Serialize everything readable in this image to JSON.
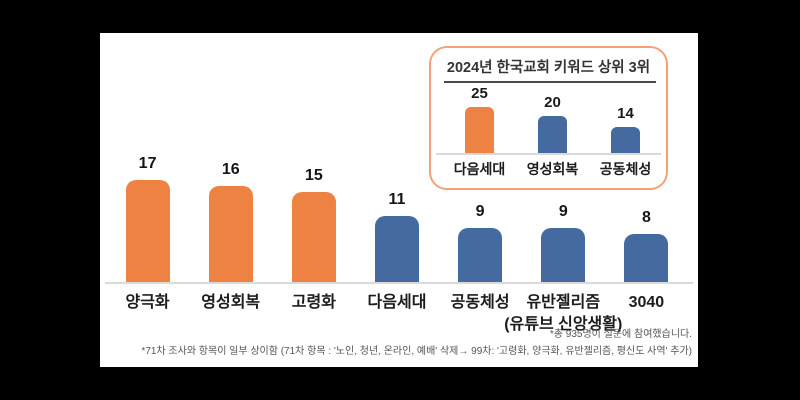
{
  "page": {
    "background": "#000000",
    "card_background": "#ffffff"
  },
  "colors": {
    "orange": "#ee8243",
    "blue": "#456a9f",
    "inset_border": "#f5a173",
    "baseline": "#dadada",
    "text": "#1c1c1c",
    "footer_text": "#555555"
  },
  "chart_data": [
    {
      "type": "bar",
      "name": "main-keyword-chart",
      "title": "",
      "categories": [
        "양극화",
        "영성회복",
        "고령화",
        "다음세대",
        "공동체성",
        "유반젤리즘",
        "3040"
      ],
      "sublabels": [
        null,
        null,
        null,
        null,
        null,
        "(유튜브 신앙생활)",
        null
      ],
      "values": [
        17,
        16,
        15,
        11,
        9,
        9,
        8
      ],
      "colors": [
        "#ee8243",
        "#ee8243",
        "#ee8243",
        "#456a9f",
        "#456a9f",
        "#456a9f",
        "#456a9f"
      ],
      "xlabel": "",
      "ylabel": "",
      "ylim": [
        0,
        18
      ],
      "grid": false,
      "legend": false,
      "data_labels": true
    },
    {
      "type": "bar",
      "name": "inset-top3-chart",
      "title": "2024년 한국교회 키워드 상위 3위",
      "categories": [
        "다음세대",
        "영성회복",
        "공동체성"
      ],
      "values": [
        25,
        20,
        14
      ],
      "colors": [
        "#ee8243",
        "#456a9f",
        "#456a9f"
      ],
      "xlabel": "",
      "ylabel": "",
      "ylim": [
        0,
        27
      ],
      "grid": false,
      "legend": false,
      "data_labels": true
    }
  ],
  "footer": {
    "note1": "*총 935명이 설문에 참여했습니다.",
    "note2": "*71차 조사와 항목이 일부 상이함 (71차 항목 : '노인, 청년, 온라인, 예배' 삭제→ 99차: '고령화, 양극화, 유반젤리즘, 평신도 사역' 추가)"
  }
}
